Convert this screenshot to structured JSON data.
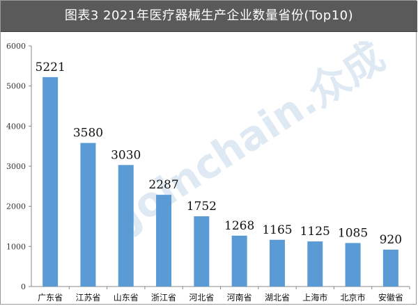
{
  "title": "图表3  2021年医疗器械生产企业数量省份(Top10)",
  "watermark": "Joinchain.众成",
  "colors": {
    "bar": "#5b9bd5",
    "title_bg": "#5a5a5a",
    "axis": "#888888"
  },
  "chart_data": {
    "type": "bar",
    "title": "图表3  2021年医疗器械生产企业数量省份(Top10)",
    "xlabel": "",
    "ylabel": "",
    "ylim": [
      0,
      6000
    ],
    "yticks": [
      0,
      1000,
      2000,
      3000,
      4000,
      5000,
      6000
    ],
    "grid": false,
    "categories": [
      "广东省",
      "江苏省",
      "山东省",
      "浙江省",
      "河北省",
      "河南省",
      "湖北省",
      "上海市",
      "北京市",
      "安徽省"
    ],
    "values": [
      5221,
      3580,
      3030,
      2287,
      1752,
      1268,
      1165,
      1125,
      1085,
      920
    ]
  }
}
